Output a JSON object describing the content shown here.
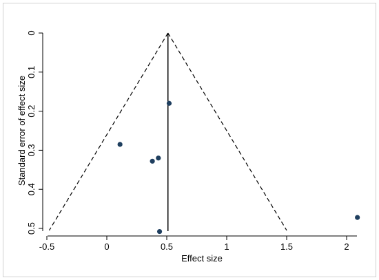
{
  "chart_data": {
    "type": "scatter",
    "title": "",
    "xlabel": "Effect size",
    "ylabel": "Standard error of effect size",
    "xlim": [
      -0.55,
      2.12
    ],
    "ylim": [
      0.515,
      -0.01
    ],
    "y_reversed": true,
    "x_ticks": [
      -0.5,
      0,
      0.5,
      1,
      1.5,
      2
    ],
    "x_tick_labels": [
      "-0.5",
      "0",
      "0.5",
      "1",
      "1.5",
      "2"
    ],
    "y_ticks": [
      0,
      0.1,
      0.2,
      0.3,
      0.4,
      0.5
    ],
    "y_tick_labels": [
      "0",
      "0.1",
      "0.2",
      "0.3",
      "0.4",
      "0.5"
    ],
    "grid": false,
    "legend": "none",
    "point_color": "#1f3f5f",
    "pooled_effect": 0.51,
    "funnel": {
      "apex": {
        "x": 0.51,
        "se": 0
      },
      "left_base": {
        "x": -0.48,
        "se": 0.505
      },
      "right_base": {
        "x": 1.5,
        "se": 0.505
      }
    },
    "points": [
      {
        "x": 0.52,
        "se": 0.18
      },
      {
        "x": 0.11,
        "se": 0.285
      },
      {
        "x": 0.43,
        "se": 0.32
      },
      {
        "x": 0.38,
        "se": 0.328
      },
      {
        "x": 0.44,
        "se": 0.508
      },
      {
        "x": 2.09,
        "se": 0.472
      }
    ]
  }
}
